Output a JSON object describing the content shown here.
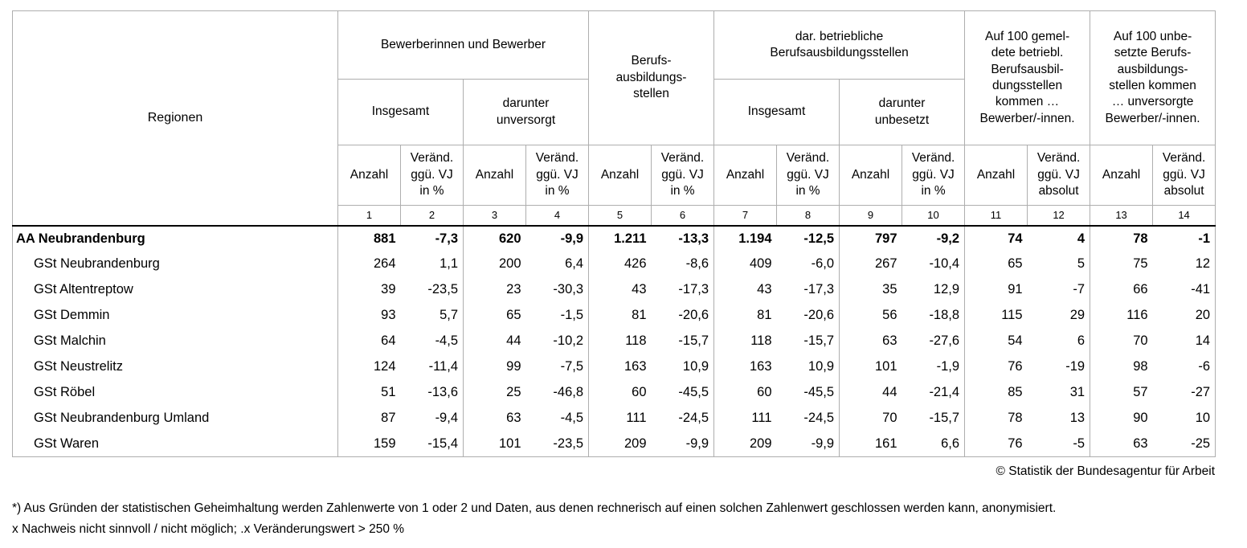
{
  "table": {
    "header": {
      "regionen": "Regionen",
      "group_bewerber": "Bewerberinnen und Bewerber",
      "group_stellen": "Berufs-\nausbildungs-\nstellen",
      "group_betrieblich": "dar. betriebliche\nBerufsausbildungsstellen",
      "group_auf100_gemeldet": "Auf 100 gemel-\ndete betriebl.\nBerufsausbil-\ndungsstellen\nkommen …\nBewerber/-innen.",
      "group_auf100_unbesetzt": "Auf 100 unbe-\nsetzte Berufs-\nausbildungs-\nstellen kommen\n… unversorgte\nBewerber/-innen.",
      "sub_insgesamt_bewerber": "Insgesamt",
      "sub_darunter_unversorgt": "darunter\nunversorgt",
      "sub_insgesamt_betrieblich": "Insgesamt",
      "sub_darunter_unbesetzt": "darunter\nunbesetzt",
      "anzahl": "Anzahl",
      "veraend_prozent": "Veränd.\nggü. VJ\nin %",
      "veraend_absolut": "Veränd.\nggü. VJ\nabsolut",
      "col_numbers": [
        "1",
        "2",
        "3",
        "4",
        "5",
        "6",
        "7",
        "8",
        "9",
        "10",
        "11",
        "12",
        "13",
        "14"
      ]
    },
    "rows": [
      {
        "region": "AA Neubrandenburg",
        "values": [
          "881",
          "-7,3",
          "620",
          "-9,9",
          "1.211",
          "-13,3",
          "1.194",
          "-12,5",
          "797",
          "-9,2",
          "74",
          "4",
          "78",
          "-1"
        ]
      },
      {
        "region": "GSt Neubrandenburg",
        "values": [
          "264",
          "1,1",
          "200",
          "6,4",
          "426",
          "-8,6",
          "409",
          "-6,0",
          "267",
          "-10,4",
          "65",
          "5",
          "75",
          "12"
        ]
      },
      {
        "region": "GSt Altentreptow",
        "values": [
          "39",
          "-23,5",
          "23",
          "-30,3",
          "43",
          "-17,3",
          "43",
          "-17,3",
          "35",
          "12,9",
          "91",
          "-7",
          "66",
          "-41"
        ]
      },
      {
        "region": "GSt Demmin",
        "values": [
          "93",
          "5,7",
          "65",
          "-1,5",
          "81",
          "-20,6",
          "81",
          "-20,6",
          "56",
          "-18,8",
          "115",
          "29",
          "116",
          "20"
        ]
      },
      {
        "region": "GSt Malchin",
        "values": [
          "64",
          "-4,5",
          "44",
          "-10,2",
          "118",
          "-15,7",
          "118",
          "-15,7",
          "63",
          "-27,6",
          "54",
          "6",
          "70",
          "14"
        ]
      },
      {
        "region": "GSt Neustrelitz",
        "values": [
          "124",
          "-11,4",
          "99",
          "-7,5",
          "163",
          "10,9",
          "163",
          "10,9",
          "101",
          "-1,9",
          "76",
          "-19",
          "98",
          "-6"
        ]
      },
      {
        "region": "GSt Röbel",
        "values": [
          "51",
          "-13,6",
          "25",
          "-46,8",
          "60",
          "-45,5",
          "60",
          "-45,5",
          "44",
          "-21,4",
          "85",
          "31",
          "57",
          "-27"
        ]
      },
      {
        "region": "GSt Neubrandenburg Umland",
        "values": [
          "87",
          "-9,4",
          "63",
          "-4,5",
          "111",
          "-24,5",
          "111",
          "-24,5",
          "70",
          "-15,7",
          "78",
          "13",
          "90",
          "10"
        ]
      },
      {
        "region": "GSt Waren",
        "values": [
          "159",
          "-15,4",
          "101",
          "-23,5",
          "209",
          "-9,9",
          "209",
          "-9,9",
          "161",
          "6,6",
          "76",
          "-5",
          "63",
          "-25"
        ]
      }
    ]
  },
  "footer": {
    "copyright": "© Statistik der Bundesagentur für Arbeit",
    "footnote_1": "*) Aus Gründen der statistischen Geheimhaltung werden Zahlenwerte von 1 oder 2 und Daten, aus denen rechnerisch auf einen solchen Zahlenwert geschlossen werden kann, anonymisiert.",
    "footnote_2": "x Nachweis nicht sinnvoll / nicht möglich; .x Veränderungswert > 250 %"
  }
}
